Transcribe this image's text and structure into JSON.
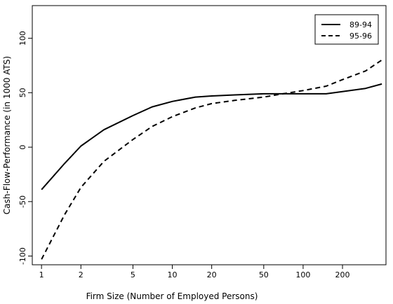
{
  "chart_data": {
    "type": "line",
    "xlabel": "Firm Size (Number of Employed Persons)",
    "ylabel": "Cash-Flow-Performance (in 1000 ATS)",
    "xscale": "log",
    "xlim": [
      0.85,
      430
    ],
    "ylim": [
      -108,
      130
    ],
    "xticks": [
      1,
      2,
      5,
      10,
      20,
      50,
      100,
      200
    ],
    "xtick_labels": [
      "1",
      "2",
      "5",
      "10",
      "20",
      "50",
      "100",
      "200"
    ],
    "yticks": [
      -100,
      -50,
      0,
      50,
      100
    ],
    "ytick_labels": [
      "-100",
      "-50",
      "0",
      "50",
      "100"
    ],
    "grid": false,
    "legend_position": "top-right",
    "series": [
      {
        "name": "89-94",
        "style": "solid",
        "color": "#000000",
        "x": [
          1,
          1.5,
          2,
          3,
          5,
          7,
          10,
          15,
          20,
          30,
          50,
          70,
          100,
          150,
          200,
          300,
          400
        ],
        "y": [
          -39,
          -15,
          1,
          16,
          29,
          37,
          42,
          46,
          47,
          48,
          49,
          49,
          49,
          49,
          51,
          54,
          58
        ]
      },
      {
        "name": "95-96",
        "style": "dashed",
        "color": "#000000",
        "x": [
          1,
          1.5,
          2,
          3,
          5,
          7,
          10,
          15,
          20,
          30,
          50,
          70,
          100,
          150,
          200,
          300,
          400
        ],
        "y": [
          -103,
          -62,
          -37,
          -13,
          7,
          19,
          28,
          36,
          40,
          43,
          46,
          49,
          52,
          56,
          62,
          70,
          80
        ]
      }
    ]
  }
}
